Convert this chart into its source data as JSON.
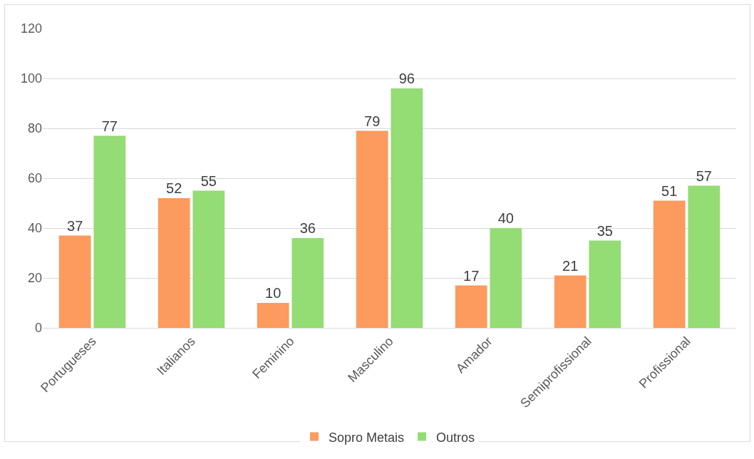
{
  "chart_data": {
    "type": "bar",
    "categories": [
      "Portugueses",
      "Italianos",
      "Feminino",
      "Masculino",
      "Amador",
      "Semiprofissional",
      "Profissional"
    ],
    "series": [
      {
        "name": "Sopro Metais",
        "color": "#fd9a5e",
        "values": [
          37,
          52,
          10,
          79,
          17,
          21,
          51
        ]
      },
      {
        "name": "Outros",
        "color": "#94dc74",
        "values": [
          77,
          55,
          36,
          96,
          40,
          35,
          57
        ]
      }
    ],
    "ylim": [
      0,
      120
    ],
    "yticks": [
      0,
      20,
      40,
      60,
      80,
      100,
      120
    ],
    "grid": "y",
    "legend": "bottom",
    "data_labels": true
  }
}
